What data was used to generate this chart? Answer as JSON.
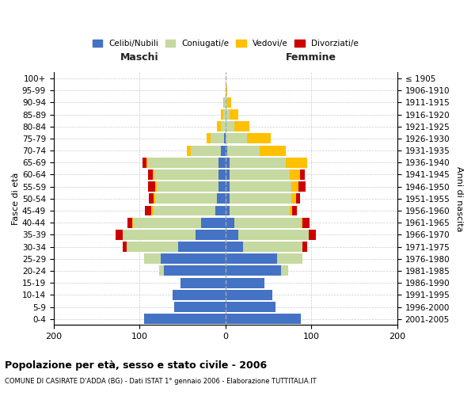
{
  "age_groups": [
    "0-4",
    "5-9",
    "10-14",
    "15-19",
    "20-24",
    "25-29",
    "30-34",
    "35-39",
    "40-44",
    "45-49",
    "50-54",
    "55-59",
    "60-64",
    "65-69",
    "70-74",
    "75-79",
    "80-84",
    "85-89",
    "90-94",
    "95-99",
    "100+"
  ],
  "birth_years": [
    "2001-2005",
    "1996-2000",
    "1991-1995",
    "1986-1990",
    "1981-1985",
    "1976-1980",
    "1971-1975",
    "1966-1970",
    "1961-1965",
    "1956-1960",
    "1951-1955",
    "1946-1950",
    "1941-1945",
    "1936-1940",
    "1931-1935",
    "1926-1930",
    "1921-1925",
    "1916-1920",
    "1911-1915",
    "1906-1910",
    "≤ 1905"
  ],
  "males": {
    "celibi": [
      95,
      60,
      62,
      52,
      72,
      75,
      55,
      35,
      28,
      12,
      10,
      8,
      8,
      8,
      5,
      2,
      0,
      0,
      0,
      0,
      0
    ],
    "coniugati": [
      0,
      0,
      0,
      0,
      5,
      20,
      60,
      85,
      80,
      72,
      72,
      72,
      75,
      82,
      35,
      15,
      5,
      3,
      2,
      0,
      0
    ],
    "vedovi": [
      0,
      0,
      0,
      0,
      0,
      0,
      0,
      0,
      1,
      2,
      2,
      2,
      2,
      2,
      5,
      5,
      5,
      2,
      1,
      0,
      0
    ],
    "divorziati": [
      0,
      0,
      0,
      0,
      0,
      0,
      5,
      8,
      5,
      8,
      5,
      8,
      5,
      5,
      0,
      0,
      0,
      0,
      0,
      0,
      0
    ]
  },
  "females": {
    "nubili": [
      88,
      58,
      55,
      45,
      65,
      60,
      20,
      15,
      10,
      5,
      5,
      5,
      5,
      5,
      2,
      0,
      0,
      0,
      0,
      0,
      0
    ],
    "coniugate": [
      0,
      0,
      0,
      0,
      8,
      30,
      70,
      82,
      78,
      70,
      72,
      72,
      70,
      65,
      38,
      25,
      10,
      5,
      2,
      1,
      0
    ],
    "vedove": [
      0,
      0,
      0,
      0,
      0,
      0,
      0,
      0,
      2,
      3,
      5,
      8,
      12,
      25,
      30,
      28,
      18,
      10,
      5,
      1,
      0
    ],
    "divorziate": [
      0,
      0,
      0,
      0,
      0,
      0,
      5,
      8,
      8,
      5,
      5,
      8,
      5,
      0,
      0,
      0,
      0,
      0,
      0,
      0,
      0
    ]
  },
  "color_celibi": "#4472c4",
  "color_coniugati": "#c5d9a0",
  "color_vedovi": "#ffc000",
  "color_divorziati": "#cc0000",
  "xlim": [
    -200,
    200
  ],
  "xticks": [
    -200,
    -100,
    0,
    100,
    200
  ],
  "xticklabels": [
    "200",
    "100",
    "0",
    "100",
    "200"
  ],
  "title": "Popolazione per età, sesso e stato civile - 2006",
  "subtitle": "COMUNE DI CASIRATE D'ADDA (BG) - Dati ISTAT 1° gennaio 2006 - Elaborazione TUTTITALIA.IT",
  "ylabel_left": "Fasce di età",
  "ylabel_right": "Anni di nascita",
  "label_maschi": "Maschi",
  "label_femmine": "Femmine",
  "legend_labels": [
    "Celibi/Nubili",
    "Coniugati/e",
    "Vedovi/e",
    "Divorziati/e"
  ],
  "bg_color": "#ffffff",
  "grid_color": "#cccccc"
}
